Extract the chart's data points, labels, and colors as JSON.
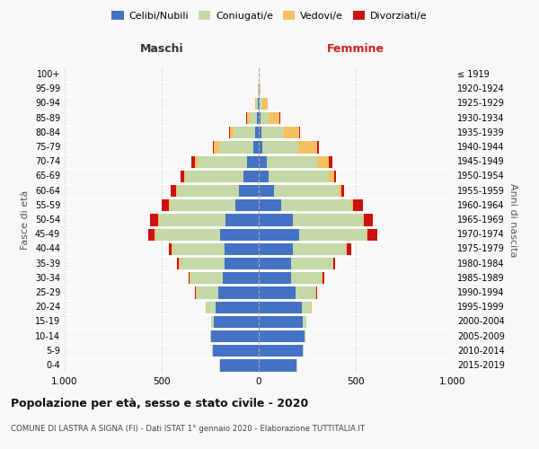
{
  "age_groups": [
    "0-4",
    "5-9",
    "10-14",
    "15-19",
    "20-24",
    "25-29",
    "30-34",
    "35-39",
    "40-44",
    "45-49",
    "50-54",
    "55-59",
    "60-64",
    "65-69",
    "70-74",
    "75-79",
    "80-84",
    "85-89",
    "90-94",
    "95-99",
    "100+"
  ],
  "birth_years": [
    "2015-2019",
    "2010-2014",
    "2005-2009",
    "2000-2004",
    "1995-1999",
    "1990-1994",
    "1985-1989",
    "1980-1984",
    "1975-1979",
    "1970-1974",
    "1965-1969",
    "1960-1964",
    "1955-1959",
    "1950-1954",
    "1945-1949",
    "1940-1944",
    "1935-1939",
    "1930-1934",
    "1925-1929",
    "1920-1924",
    "≤ 1919"
  ],
  "males": {
    "celibi": [
      200,
      235,
      245,
      230,
      220,
      210,
      185,
      175,
      175,
      200,
      170,
      120,
      100,
      80,
      60,
      30,
      20,
      8,
      4,
      2,
      0
    ],
    "coniugati": [
      5,
      5,
      5,
      15,
      50,
      110,
      165,
      230,
      270,
      330,
      345,
      340,
      320,
      300,
      255,
      175,
      110,
      40,
      10,
      3,
      0
    ],
    "vedovi": [
      0,
      0,
      0,
      0,
      5,
      5,
      5,
      5,
      5,
      5,
      5,
      5,
      5,
      5,
      15,
      25,
      20,
      10,
      5,
      0,
      0
    ],
    "divorziati": [
      0,
      0,
      0,
      0,
      0,
      5,
      5,
      10,
      15,
      35,
      40,
      35,
      30,
      20,
      15,
      5,
      5,
      5,
      0,
      0,
      0
    ]
  },
  "females": {
    "nubili": [
      195,
      225,
      235,
      225,
      220,
      190,
      165,
      165,
      175,
      210,
      175,
      115,
      80,
      50,
      40,
      20,
      15,
      8,
      4,
      2,
      0
    ],
    "coniugate": [
      5,
      5,
      5,
      20,
      50,
      100,
      160,
      215,
      275,
      345,
      360,
      360,
      330,
      310,
      260,
      185,
      115,
      45,
      15,
      3,
      0
    ],
    "vedove": [
      0,
      0,
      0,
      0,
      5,
      5,
      5,
      5,
      5,
      5,
      5,
      10,
      15,
      30,
      60,
      95,
      80,
      55,
      25,
      5,
      0
    ],
    "divorziate": [
      0,
      0,
      0,
      0,
      0,
      5,
      10,
      10,
      20,
      50,
      50,
      50,
      15,
      10,
      20,
      10,
      5,
      5,
      0,
      0,
      0
    ]
  },
  "colors": {
    "celibi": "#4472C4",
    "coniugati": "#c5d8a8",
    "vedovi": "#f5c060",
    "divorziati": "#cc1111"
  },
  "legend_labels": [
    "Celibi/Nubili",
    "Coniugati/e",
    "Vedovi/e",
    "Divorziati/e"
  ],
  "title": "Popolazione per età, sesso e stato civile - 2020",
  "subtitle": "COMUNE DI LASTRA A SIGNA (FI) - Dati ISTAT 1° gennaio 2020 - Elaborazione TUTTITALIA.IT",
  "xlabel_left": "Maschi",
  "xlabel_right": "Femmine",
  "ylabel_left": "Fasce di età",
  "ylabel_right": "Anni di nascita",
  "xlim": 1000,
  "background_color": "#f8f8f8",
  "grid_color": "#cccccc"
}
